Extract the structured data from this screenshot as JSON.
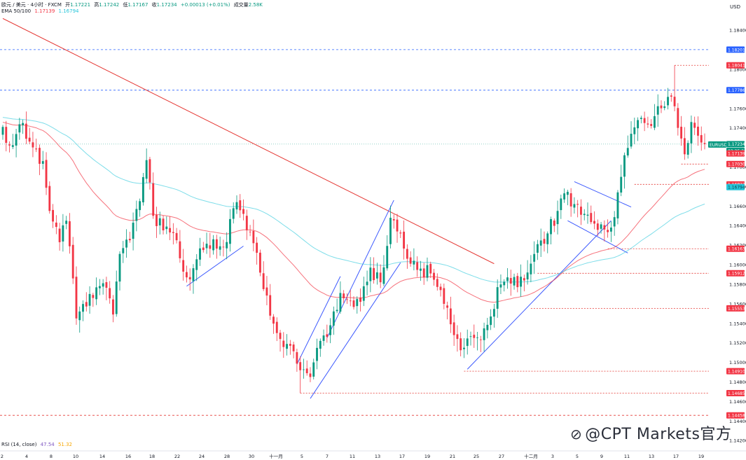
{
  "header": {
    "symbol_line": "欧元 / 美元 · 4小时 · FXCM",
    "open_label": "开",
    "open": "1.17221",
    "high_label": "高",
    "high": "1.17242",
    "low_label": "低",
    "low": "1.17167",
    "close_label": "收",
    "close": "1.17234",
    "change": "+0.00013 (+0.01%)",
    "volume_label": "成交量",
    "volume": "2.58K",
    "ema_label": "EMA 50/100",
    "ema50": "1.17139",
    "ema100": "1.16794"
  },
  "rsi": {
    "label": "RSI (14, close)",
    "value": "47.54",
    "ma": "51.32"
  },
  "currency": "USD",
  "watermark": "@CPT Markets官方",
  "colors": {
    "up": "#089981",
    "down": "#f23645",
    "ema50": "#f23645",
    "ema100": "#26c6da",
    "trend": "#3d5afe",
    "downtrend": "#e53935",
    "level_red": "#e53935",
    "level_blue": "#2962ff"
  },
  "chart_data": {
    "type": "candlestick",
    "symbol": "EURUSD",
    "timeframe": "4小时",
    "ylim": [
      1.1418,
      1.1858
    ],
    "y_ticks": [
      "1.18400",
      "1.18000",
      "1.17600",
      "1.17400",
      "1.17000",
      "1.16800",
      "1.16600",
      "1.16400",
      "1.16200",
      "1.16000",
      "1.15800",
      "1.15600",
      "1.15400",
      "1.15200",
      "1.15000",
      "1.14800",
      "1.14600",
      "1.14400",
      "1.14200"
    ],
    "x_ticks": [
      "2",
      "4",
      "8",
      "10",
      "14",
      "16",
      "18",
      "22",
      "24",
      "28",
      "30",
      "十一月",
      "5",
      "7",
      "11",
      "13",
      "17",
      "19",
      "21",
      "25",
      "27",
      "十二月",
      "3",
      "5",
      "9",
      "11",
      "13",
      "17",
      "19"
    ],
    "price_tags": [
      {
        "label": "1.18201",
        "value": 1.18201,
        "kind": "blue"
      },
      {
        "label": "1.18041",
        "value": 1.18041,
        "kind": "red"
      },
      {
        "label": "1.17786",
        "value": 1.17786,
        "kind": "blue"
      },
      {
        "label": "EURUSD",
        "value": 1.1723,
        "kind": "green"
      },
      {
        "label": "1.17234",
        "value": 1.17234,
        "kind": "green"
      },
      {
        "label": "03:35:28",
        "value": 1.17165,
        "kind": "green"
      },
      {
        "label": "1.17139",
        "value": 1.17139,
        "kind": "ema50"
      },
      {
        "label": "1.17030",
        "value": 1.1703,
        "kind": "red"
      },
      {
        "label": "1.16822",
        "value": 1.16822,
        "kind": "red"
      },
      {
        "label": "1.16794",
        "value": 1.16794,
        "kind": "ema100"
      },
      {
        "label": "1.16163",
        "value": 1.16163,
        "kind": "red"
      },
      {
        "label": "1.15912",
        "value": 1.15912,
        "kind": "red"
      },
      {
        "label": "1.15553",
        "value": 1.15553,
        "kind": "red"
      },
      {
        "label": "1.14910",
        "value": 1.1491,
        "kind": "red"
      },
      {
        "label": "1.14685",
        "value": 1.14685,
        "kind": "red"
      },
      {
        "label": "1.14458",
        "value": 1.14458,
        "kind": "red"
      }
    ],
    "horizontal_levels": [
      {
        "value": 1.18201,
        "style": "blue-dashed"
      },
      {
        "value": 1.17786,
        "style": "blue-dashed"
      },
      {
        "value": 1.14458,
        "style": "red-dashed"
      },
      {
        "value": 1.18041,
        "style": "red-dotted",
        "from_index": 201
      },
      {
        "value": 1.1703,
        "style": "red-dotted",
        "from_index": 203
      },
      {
        "value": 1.16822,
        "style": "red-dotted",
        "from_index": 189
      },
      {
        "value": 1.16163,
        "style": "red-dotted",
        "from_index": 181
      },
      {
        "value": 1.15912,
        "style": "red-dotted",
        "from_index": 160
      },
      {
        "value": 1.15553,
        "style": "red-dotted",
        "from_index": 158
      },
      {
        "value": 1.1491,
        "style": "red-dotted",
        "from_index": 138
      },
      {
        "value": 1.14685,
        "style": "red-dotted",
        "from_index": 89
      }
    ],
    "trendlines": [
      {
        "from": [
          0,
          1.1852
        ],
        "to": [
          147,
          1.1601
        ],
        "color": "downtrend"
      },
      {
        "from": [
          55,
          1.1578
        ],
        "to": [
          72,
          1.1619
        ],
        "color": "trend"
      },
      {
        "from": [
          88,
          1.1498
        ],
        "to": [
          101,
          1.1588
        ],
        "color": "trend"
      },
      {
        "from": [
          92,
          1.1463
        ],
        "to": [
          119,
          1.1602
        ],
        "color": "trend"
      },
      {
        "from": [
          97,
          1.1525
        ],
        "to": [
          117,
          1.1666
        ],
        "color": "trend"
      },
      {
        "from": [
          139,
          1.1493
        ],
        "to": [
          182,
          1.1645
        ],
        "color": "trend"
      },
      {
        "from": [
          171,
          1.1685
        ],
        "to": [
          188,
          1.1659
        ],
        "color": "trend"
      },
      {
        "from": [
          169,
          1.1645
        ],
        "to": [
          187,
          1.1612
        ],
        "color": "trend"
      }
    ],
    "anchors": [
      [
        0,
        1.1741
      ],
      [
        2,
        1.1722
      ],
      [
        6,
        1.1745
      ],
      [
        9,
        1.172
      ],
      [
        12,
        1.1706
      ],
      [
        14,
        1.1655
      ],
      [
        17,
        1.1623
      ],
      [
        19,
        1.1645
      ],
      [
        22,
        1.1545
      ],
      [
        26,
        1.157
      ],
      [
        30,
        1.1581
      ],
      [
        33,
        1.1549
      ],
      [
        35,
        1.1611
      ],
      [
        38,
        1.1625
      ],
      [
        41,
        1.1665
      ],
      [
        43,
        1.1707
      ],
      [
        45,
        1.165
      ],
      [
        49,
        1.1639
      ],
      [
        52,
        1.1625
      ],
      [
        55,
        1.1587
      ],
      [
        60,
        1.1615
      ],
      [
        63,
        1.1626
      ],
      [
        66,
        1.1618
      ],
      [
        70,
        1.1664
      ],
      [
        72,
        1.1652
      ],
      [
        75,
        1.1622
      ],
      [
        78,
        1.1575
      ],
      [
        82,
        1.153
      ],
      [
        86,
        1.1517
      ],
      [
        89,
        1.1492
      ],
      [
        92,
        1.1485
      ],
      [
        95,
        1.1522
      ],
      [
        98,
        1.1538
      ],
      [
        101,
        1.1571
      ],
      [
        104,
        1.1563
      ],
      [
        107,
        1.1562
      ],
      [
        110,
        1.1597
      ],
      [
        113,
        1.1582
      ],
      [
        116,
        1.1648
      ],
      [
        119,
        1.1632
      ],
      [
        122,
        1.1601
      ],
      [
        125,
        1.1596
      ],
      [
        128,
        1.1591
      ],
      [
        131,
        1.1574
      ],
      [
        134,
        1.1539
      ],
      [
        136,
        1.1524
      ],
      [
        138,
        1.1515
      ],
      [
        141,
        1.1525
      ],
      [
        143,
        1.1523
      ],
      [
        146,
        1.1547
      ],
      [
        148,
        1.1577
      ],
      [
        151,
        1.1587
      ],
      [
        154,
        1.1577
      ],
      [
        157,
        1.1592
      ],
      [
        160,
        1.1621
      ],
      [
        163,
        1.1632
      ],
      [
        166,
        1.1655
      ],
      [
        168,
        1.1673
      ],
      [
        171,
        1.1662
      ],
      [
        174,
        1.1652
      ],
      [
        177,
        1.1642
      ],
      [
        180,
        1.1636
      ],
      [
        182,
        1.1638
      ],
      [
        184,
        1.1674
      ],
      [
        186,
        1.1712
      ],
      [
        188,
        1.1734
      ],
      [
        190,
        1.1748
      ],
      [
        192,
        1.1745
      ],
      [
        195,
        1.1752
      ],
      [
        198,
        1.1762
      ],
      [
        200,
        1.1772
      ],
      [
        202,
        1.174
      ],
      [
        204,
        1.1713
      ],
      [
        206,
        1.1746
      ],
      [
        208,
        1.1732
      ],
      [
        210,
        1.1723
      ]
    ],
    "candle_count": 211,
    "ema_periods": [
      50,
      100
    ],
    "last_close": 1.17234
  }
}
